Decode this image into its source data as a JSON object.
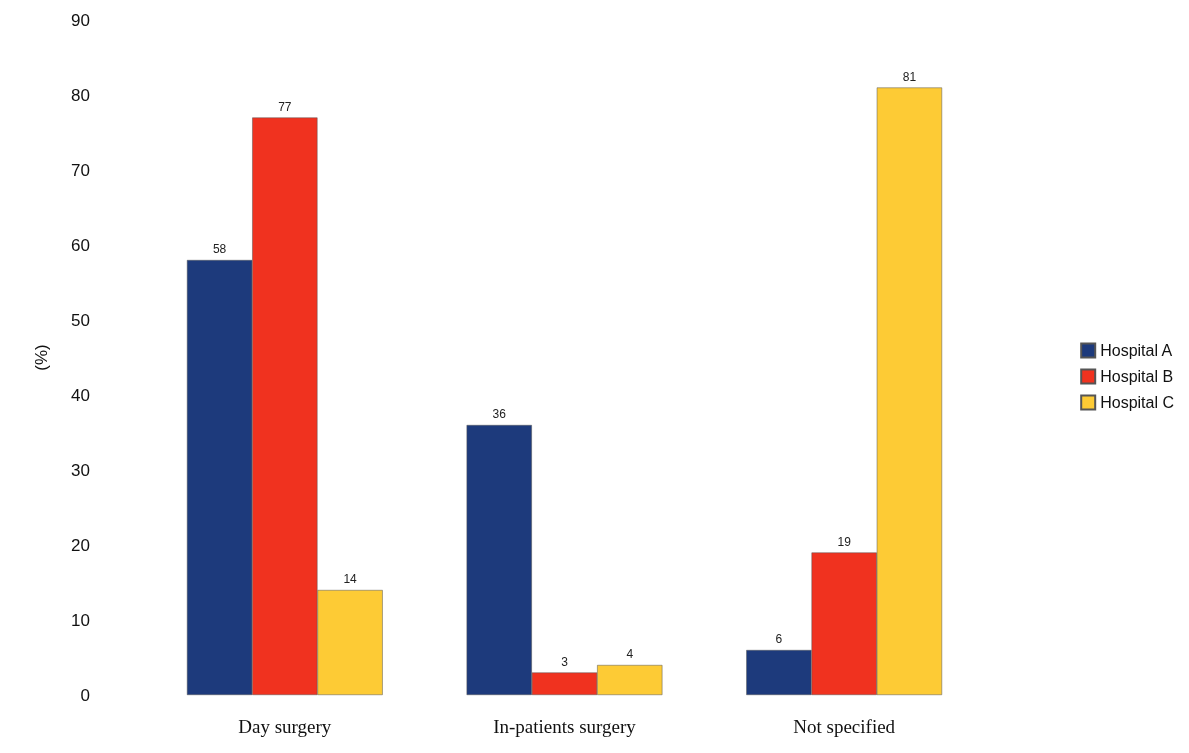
{
  "chart_data": {
    "type": "bar",
    "ylabel": "(%)",
    "categories": [
      "Day surgery",
      "In-patients surgery",
      "Not specified"
    ],
    "series": [
      {
        "name": "Hospital A",
        "color": "#1d3a7c",
        "values": [
          58,
          36,
          6
        ]
      },
      {
        "name": "Hospital B",
        "color": "#f0321f",
        "values": [
          77,
          3,
          19
        ]
      },
      {
        "name": "Hospital C",
        "color": "#fdcb35",
        "values": [
          14,
          4,
          81
        ]
      }
    ],
    "ylim": [
      0,
      90
    ],
    "yticks": [
      0,
      10,
      20,
      30,
      40,
      50,
      60,
      70,
      80,
      90
    ],
    "grid": false,
    "legend": "right",
    "data_labels": true
  }
}
